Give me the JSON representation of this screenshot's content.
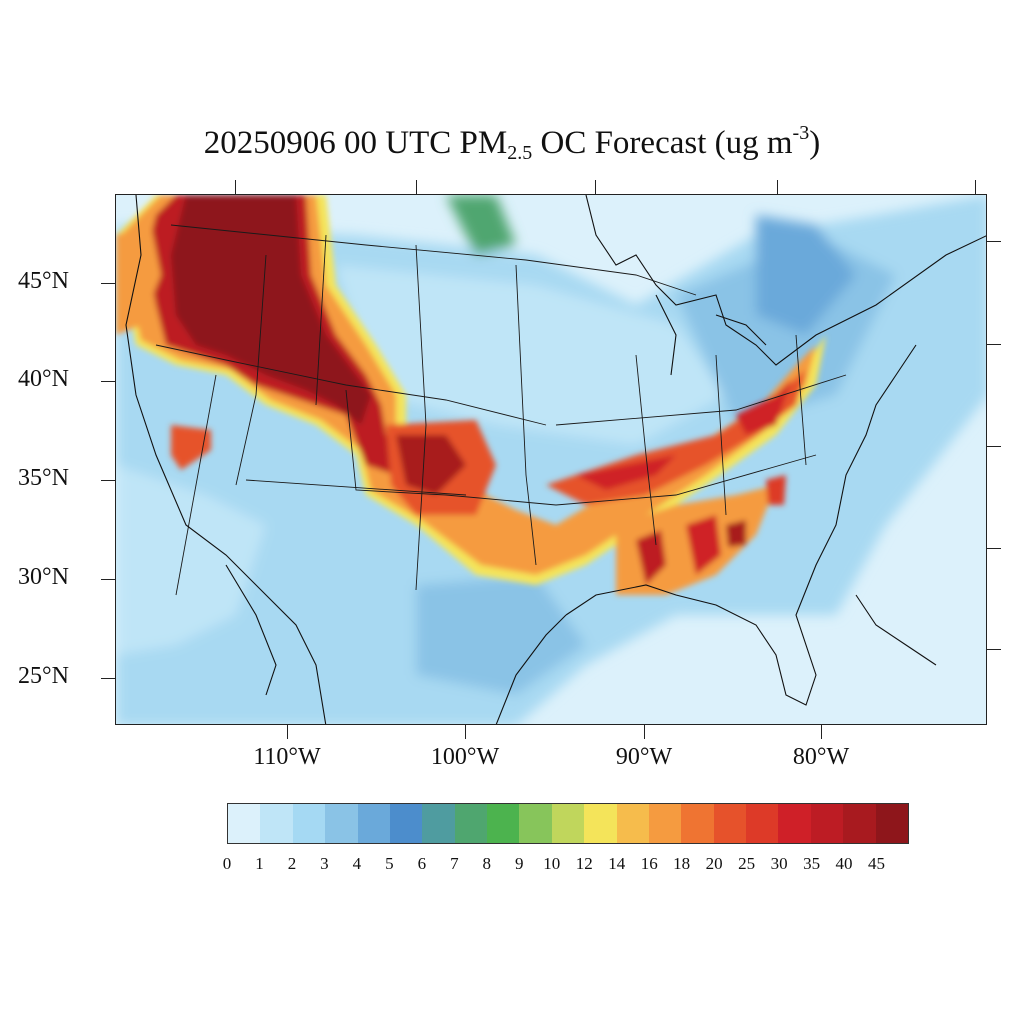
{
  "title": {
    "prefix": "20250906 00 UTC PM",
    "subscript": "2.5",
    "middle": " OC Forecast (ug m",
    "superscript": "-3",
    "suffix": ")"
  },
  "map": {
    "projection": "Lambert conformal",
    "region": "Continental United States",
    "variable": "PM2.5 organic carbon",
    "units": "ug m-3",
    "lat_labels": [
      "45°N",
      "40°N",
      "35°N",
      "30°N",
      "25°N"
    ],
    "lon_labels": [
      "110°W",
      "100°W",
      "90°W",
      "80°W"
    ],
    "background_color": "#ddf0fb",
    "boundary_color": "#1a1a1a",
    "high_concentration_areas": [
      {
        "name": "Pacific Northwest / Northern Rockies smoke plume",
        "level": "45+"
      },
      {
        "name": "Central Plains band (Colorado–Kansas–Oklahoma)",
        "level": "30-45"
      },
      {
        "name": "Arkansas–Tennessee–Ohio Valley band",
        "level": "20-35"
      },
      {
        "name": "Southeast (Mississippi, Alabama, Georgia)",
        "level": "30-45"
      },
      {
        "name": "Northern California hotspot",
        "level": "20-30"
      }
    ]
  },
  "colorbar": {
    "labels": [
      "0",
      "1",
      "2",
      "3",
      "4",
      "5",
      "6",
      "7",
      "8",
      "9",
      "10",
      "12",
      "14",
      "16",
      "18",
      "20",
      "25",
      "30",
      "35",
      "40",
      "45"
    ],
    "colors": [
      "#dcf1fb",
      "#bfe5f7",
      "#a5d9f3",
      "#8ac3e6",
      "#6aa9da",
      "#4c8dcc",
      "#4f9ca0",
      "#4fa66f",
      "#4cb34e",
      "#87c55b",
      "#c0d65c",
      "#f4e45a",
      "#f6bc4c",
      "#f59b40",
      "#ef7432",
      "#e6522b",
      "#dd3a28",
      "#cf2028",
      "#bd1c24",
      "#a81a1f",
      "#8e161b"
    ]
  }
}
